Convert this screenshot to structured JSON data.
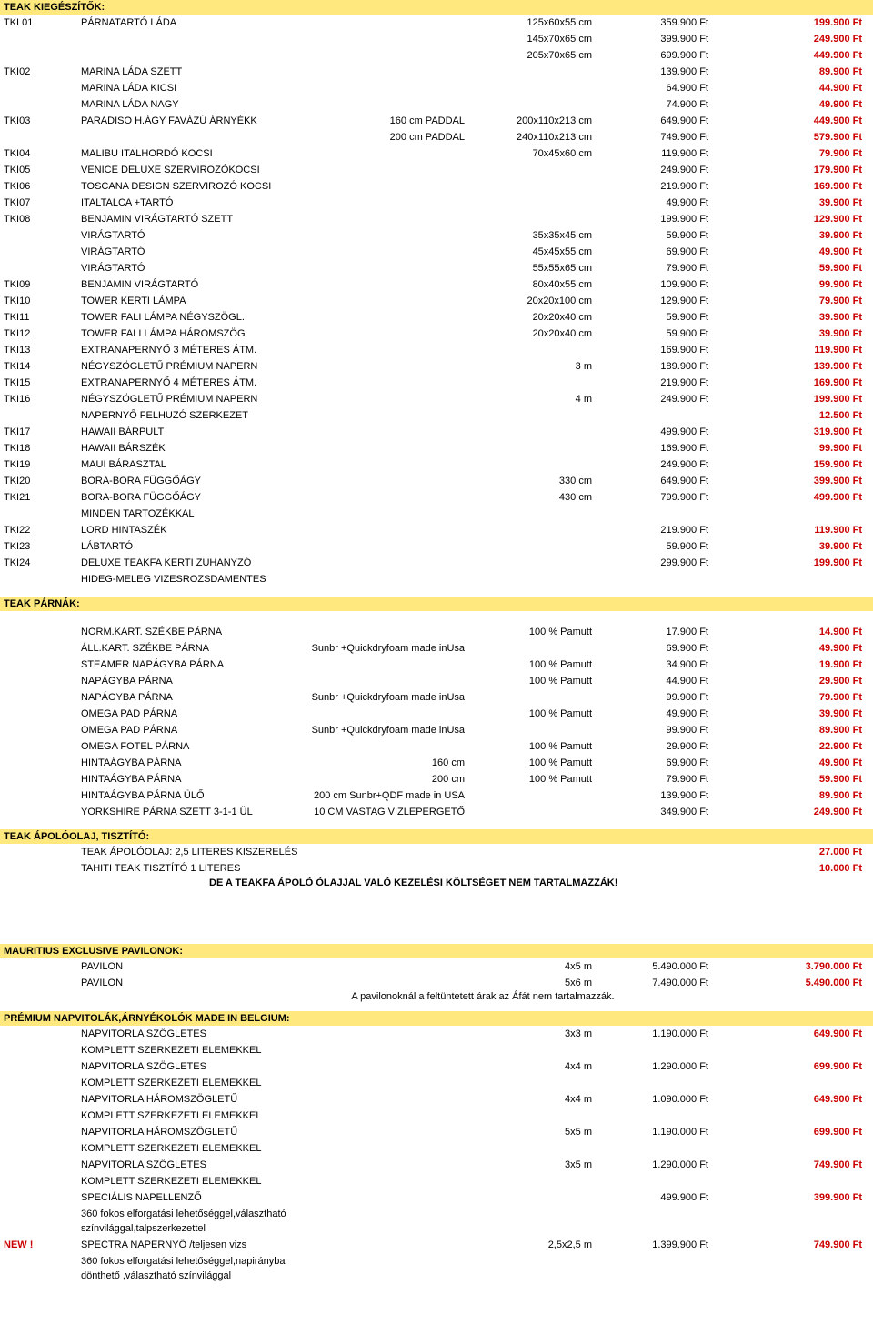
{
  "sections": {
    "teak_kieg": {
      "title": "TEAK KIEGÉSZÍTŐK:",
      "rows": [
        {
          "code": "TKI 01",
          "name": "PÁRNATARTÓ LÁDA",
          "spec": "",
          "dim": "125x60x55 cm",
          "list": "359.900 Ft",
          "sale": "199.900 Ft"
        },
        {
          "code": "",
          "name": "",
          "spec": "",
          "dim": "145x70x65 cm",
          "list": "399.900 Ft",
          "sale": "249.900 Ft"
        },
        {
          "code": "",
          "name": "",
          "spec": "",
          "dim": "205x70x65 cm",
          "list": "699.900 Ft",
          "sale": "449.900 Ft"
        },
        {
          "code": "TKI02",
          "name": "MARINA LÁDA SZETT",
          "spec": "",
          "dim": "",
          "list": "139.900 Ft",
          "sale": "89.900 Ft"
        },
        {
          "code": "",
          "name": "MARINA LÁDA KICSI",
          "spec": "",
          "dim": "",
          "list": "64.900 Ft",
          "sale": "44.900 Ft"
        },
        {
          "code": "",
          "name": "MARINA LÁDA NAGY",
          "spec": "",
          "dim": "",
          "list": "74.900 Ft",
          "sale": "49.900 Ft"
        },
        {
          "code": "TKI03",
          "name": "PARADISO H.ÁGY FAVÁZÚ ÁRNYÉKK",
          "spec": "160 cm PADDAL",
          "dim": "200x110x213 cm",
          "list": "649.900 Ft",
          "sale": "449.900 Ft"
        },
        {
          "code": "",
          "name": "",
          "spec": "200 cm PADDAL",
          "dim": "240x110x213 cm",
          "list": "749.900 Ft",
          "sale": "579.900 Ft"
        },
        {
          "code": "TKI04",
          "name": "MALIBU ITALHORDÓ KOCSI",
          "spec": "",
          "dim": "70x45x60 cm",
          "list": "119.900 Ft",
          "sale": "79.900 Ft"
        },
        {
          "code": "TKI05",
          "name": "VENICE DELUXE SZERVIROZÓKOCSI",
          "spec": "",
          "dim": "",
          "list": "249.900 Ft",
          "sale": "179.900 Ft"
        },
        {
          "code": "TKI06",
          "name": "TOSCANA DESIGN SZERVIROZÓ KOCSI",
          "spec": "",
          "dim": "",
          "list": "219.900 Ft",
          "sale": "169.900 Ft"
        },
        {
          "code": "TKI07",
          "name": "ITALTALCA +TARTÓ",
          "spec": "",
          "dim": "",
          "list": "49.900 Ft",
          "sale": "39.900 Ft"
        },
        {
          "code": "TKI08",
          "name": "BENJAMIN VIRÁGTARTÓ SZETT",
          "spec": "",
          "dim": "",
          "list": "199.900 Ft",
          "sale": "129.900 Ft"
        },
        {
          "code": "",
          "name": "VIRÁGTARTÓ",
          "spec": "",
          "dim": "35x35x45 cm",
          "list": "59.900 Ft",
          "sale": "39.900 Ft"
        },
        {
          "code": "",
          "name": "VIRÁGTARTÓ",
          "spec": "",
          "dim": "45x45x55 cm",
          "list": "69.900 Ft",
          "sale": "49.900 Ft"
        },
        {
          "code": "",
          "name": "VIRÁGTARTÓ",
          "spec": "",
          "dim": "55x55x65 cm",
          "list": "79.900 Ft",
          "sale": "59.900 Ft"
        },
        {
          "code": "TKI09",
          "name": "BENJAMIN VIRÁGTARTÓ",
          "spec": "",
          "dim": "80x40x55 cm",
          "list": "109.900 Ft",
          "sale": "99.900 Ft"
        },
        {
          "code": "TKI10",
          "name": "TOWER KERTI LÁMPA",
          "spec": "",
          "dim": "20x20x100 cm",
          "list": "129.900 Ft",
          "sale": "79.900 Ft"
        },
        {
          "code": "TKI11",
          "name": "TOWER FALI LÁMPA NÉGYSZÖGL.",
          "spec": "",
          "dim": "20x20x40 cm",
          "list": "59.900 Ft",
          "sale": "39.900 Ft"
        },
        {
          "code": "TKI12",
          "name": "TOWER FALI LÁMPA HÁROMSZÖG",
          "spec": "",
          "dim": "20x20x40 cm",
          "list": "59.900 Ft",
          "sale": "39.900 Ft"
        },
        {
          "code": "TKI13",
          "name": "EXTRANAPERNYŐ 3 MÉTERES ÁTM.",
          "spec": "",
          "dim": "",
          "list": "169.900 Ft",
          "sale": "119.900 Ft"
        },
        {
          "code": "TKI14",
          "name": "NÉGYSZÖGLETŰ PRÉMIUM NAPERN",
          "spec": "",
          "dim": "3 m",
          "list": "189.900 Ft",
          "sale": "139.900 Ft"
        },
        {
          "code": "TKI15",
          "name": "EXTRANAPERNYŐ 4 MÉTERES ÁTM.",
          "spec": "",
          "dim": "",
          "list": "219.900 Ft",
          "sale": "169.900 Ft"
        },
        {
          "code": "TKI16",
          "name": "NÉGYSZÖGLETŰ PRÉMIUM NAPERN",
          "spec": "",
          "dim": "4 m",
          "list": "249.900 Ft",
          "sale": "199.900 Ft"
        },
        {
          "code": "",
          "name": "NAPERNYŐ FELHUZÓ SZERKEZET",
          "spec": "",
          "dim": "",
          "list": "",
          "sale": "12.500 Ft"
        },
        {
          "code": "TKI17",
          "name": "HAWAII BÁRPULT",
          "spec": "",
          "dim": "",
          "list": "499.900 Ft",
          "sale": "319.900 Ft"
        },
        {
          "code": "TKI18",
          "name": "HAWAII BÁRSZÉK",
          "spec": "",
          "dim": "",
          "list": "169.900 Ft",
          "sale": "99.900 Ft"
        },
        {
          "code": "TKI19",
          "name": "MAUI BÁRASZTAL",
          "spec": "",
          "dim": "",
          "list": "249.900 Ft",
          "sale": "159.900 Ft"
        },
        {
          "code": "TKI20",
          "name": "BORA-BORA FÜGGŐÁGY",
          "spec": "",
          "dim": "330 cm",
          "list": "649.900 Ft",
          "sale": "399.900 Ft"
        },
        {
          "code": "TKI21",
          "name": "BORA-BORA FÜGGŐÁGY",
          "spec": "",
          "dim": "430 cm",
          "list": "799.900 Ft",
          "sale": "499.900 Ft"
        },
        {
          "code": "",
          "name": "MINDEN TARTOZÉKKAL",
          "spec": "",
          "dim": "",
          "list": "",
          "sale": ""
        },
        {
          "code": "TKI22",
          "name": "LORD HINTASZÉK",
          "spec": "",
          "dim": "",
          "list": "219.900 Ft",
          "sale": "119.900 Ft"
        },
        {
          "code": "TKI23",
          "name": "LÁBTARTÓ",
          "spec": "",
          "dim": "",
          "list": "59.900 Ft",
          "sale": "39.900 Ft"
        },
        {
          "code": "TKI24",
          "name": "DELUXE TEAKFA KERTI ZUHANYZÓ",
          "spec": "",
          "dim": "",
          "list": "299.900 Ft",
          "sale": "199.900 Ft"
        },
        {
          "code": "",
          "name": "HIDEG-MELEG VIZESROZSDAMENTES",
          "spec": "",
          "dim": "",
          "list": "",
          "sale": ""
        }
      ]
    },
    "teak_parnak": {
      "title": "TEAK PÁRNÁK:",
      "rows": [
        {
          "code": "",
          "name": "NORM.KART. SZÉKBE PÁRNA",
          "spec": "",
          "dim": "100 % Pamutt",
          "list": "17.900 Ft",
          "sale": "14.900 Ft"
        },
        {
          "code": "",
          "name": "ÁLL.KART. SZÉKBE PÁRNA",
          "spec": "Sunbr +Quickdryfoam made inUsa",
          "dim": "",
          "list": "69.900 Ft",
          "sale": "49.900 Ft"
        },
        {
          "code": "",
          "name": "STEAMER NAPÁGYBA PÁRNA",
          "spec": "",
          "dim": "100 % Pamutt",
          "list": "34.900 Ft",
          "sale": "19.900 Ft"
        },
        {
          "code": "",
          "name": "NAPÁGYBA PÁRNA",
          "spec": "",
          "dim": "100 % Pamutt",
          "list": "44.900 Ft",
          "sale": "29.900 Ft"
        },
        {
          "code": "",
          "name": "NAPÁGYBA PÁRNA",
          "spec": "Sunbr +Quickdryfoam made inUsa",
          "dim": "",
          "list": "99.900 Ft",
          "sale": "79.900 Ft"
        },
        {
          "code": "",
          "name": "OMEGA PAD PÁRNA",
          "spec": "",
          "dim": "100 % Pamutt",
          "list": "49.900 Ft",
          "sale": "39.900 Ft"
        },
        {
          "code": "",
          "name": "OMEGA PAD PÁRNA",
          "spec": "Sunbr +Quickdryfoam made inUsa",
          "dim": "",
          "list": "99.900 Ft",
          "sale": "89.900 Ft"
        },
        {
          "code": "",
          "name": "OMEGA FOTEL PÁRNA",
          "spec": "",
          "dim": "100 % Pamutt",
          "list": "29.900 Ft",
          "sale": "22.900 Ft"
        },
        {
          "code": "",
          "name": "HINTAÁGYBA PÁRNA",
          "spec": "160 cm",
          "dim": "100 % Pamutt",
          "list": "69.900 Ft",
          "sale": "49.900 Ft"
        },
        {
          "code": "",
          "name": "HINTAÁGYBA PÁRNA",
          "spec": "200 cm",
          "dim": "100 % Pamutt",
          "list": "79.900 Ft",
          "sale": "59.900 Ft"
        },
        {
          "code": "",
          "name": "HINTAÁGYBA PÁRNA ÜLŐ",
          "spec": "200 cm Sunbr+QDF made in USA",
          "dim": "",
          "list": "139.900 Ft",
          "sale": "89.900 Ft"
        },
        {
          "code": "",
          "name": "YORKSHIRE PÁRNA SZETT 3-1-1 ÜL",
          "spec": "10 CM VASTAG VIZLEPERGETŐ",
          "dim": "",
          "list": "349.900 Ft",
          "sale": "249.900 Ft"
        }
      ]
    },
    "teak_apolo": {
      "title": "TEAK ÁPOLÓOLAJ, TISZTÍTÓ:",
      "rows": [
        {
          "code": "",
          "name": "TEAK ÁPOLÓOLAJ: 2,5 LITERES KISZERELÉS",
          "spec": "",
          "dim": "",
          "list": "",
          "sale": "27.000 Ft"
        },
        {
          "code": "",
          "name": "TAHITI TEAK TISZTÍTÓ 1 LITERES",
          "spec": "",
          "dim": "",
          "list": "",
          "sale": "10.000 Ft"
        }
      ],
      "note": "DE A TEAKFA ÁPOLÓ ÓLAJJAL VALÓ KEZELÉSI KÖLTSÉGET NEM TARTALMAZZÁK!"
    },
    "mauritius": {
      "title": "MAURITIUS EXCLUSIVE PAVILONOK:",
      "rows": [
        {
          "code": "",
          "name": "PAVILON",
          "spec": "",
          "dim": "4x5 m",
          "list": "5.490.000 Ft",
          "sale": "3.790.000 Ft"
        },
        {
          "code": "",
          "name": "PAVILON",
          "spec": "",
          "dim": "5x6 m",
          "list": "7.490.000 Ft",
          "sale": "5.490.000 Ft"
        }
      ],
      "note": "A pavilonoknál a feltüntetett árak az Áfát nem tartalmazzák."
    },
    "premium": {
      "title": "PRÉMIUM NAPVITOLÁK,ÁRNYÉKOLÓK  MADE IN BELGIUM:",
      "rows": [
        {
          "code": "",
          "name": "NAPVITORLA SZÖGLETES",
          "spec": "",
          "dim": "3x3 m",
          "list": "1.190.000 Ft",
          "sale": "649.900 Ft"
        },
        {
          "code": "",
          "name": "KOMPLETT SZERKEZETI ELEMEKKEL",
          "spec": "",
          "dim": "",
          "list": "",
          "sale": ""
        },
        {
          "code": "",
          "name": "NAPVITORLA SZÖGLETES",
          "spec": "",
          "dim": "4x4 m",
          "list": "1.290.000 Ft",
          "sale": "699.900 Ft"
        },
        {
          "code": "",
          "name": "KOMPLETT SZERKEZETI ELEMEKKEL",
          "spec": "",
          "dim": "",
          "list": "",
          "sale": ""
        },
        {
          "code": "",
          "name": "NAPVITORLA HÁROMSZÖGLETŰ",
          "spec": "",
          "dim": "4x4 m",
          "list": "1.090.000 Ft",
          "sale": "649.900 Ft"
        },
        {
          "code": "",
          "name": "KOMPLETT SZERKEZETI ELEMEKKEL",
          "spec": "",
          "dim": "",
          "list": "",
          "sale": ""
        },
        {
          "code": "",
          "name": "NAPVITORLA HÁROMSZÖGLETŰ",
          "spec": "",
          "dim": "5x5 m",
          "list": "1.190.000 Ft",
          "sale": "699.900 Ft"
        },
        {
          "code": "",
          "name": "KOMPLETT SZERKEZETI ELEMEKKEL",
          "spec": "",
          "dim": "",
          "list": "",
          "sale": ""
        },
        {
          "code": "",
          "name": "NAPVITORLA SZÖGLETES",
          "spec": "",
          "dim": "3x5 m",
          "list": "1.290.000 Ft",
          "sale": "749.900 Ft"
        },
        {
          "code": "",
          "name": "KOMPLETT SZERKEZETI ELEMEKKEL",
          "spec": "",
          "dim": "",
          "list": "",
          "sale": ""
        },
        {
          "code": "",
          "name": "SPECIÁLIS NAPELLENZŐ",
          "spec": "",
          "dim": "",
          "list": "499.900 Ft",
          "sale": "399.900 Ft"
        },
        {
          "code": "",
          "name": "360 fokos elforgatási lehetőséggel,választható színvilággal,talpszerkezettel",
          "spec": "",
          "dim": "",
          "list": "",
          "sale": ""
        },
        {
          "code": "NEW !",
          "name": "SPECTRA  NAPERNYŐ /teljesen vizs",
          "spec": "",
          "dim": "2,5x2,5 m",
          "list": "1.399.900 Ft",
          "sale": "749.900 Ft",
          "isNew": true
        },
        {
          "code": "",
          "name": "360 fokos elforgatási lehetőséggel,napirányba dönthető ,választható színvilággal",
          "spec": "",
          "dim": "",
          "list": "",
          "sale": ""
        }
      ]
    }
  },
  "colors": {
    "header_bg": "#ffe97f",
    "sale": "#cc0000",
    "text": "#000000"
  }
}
